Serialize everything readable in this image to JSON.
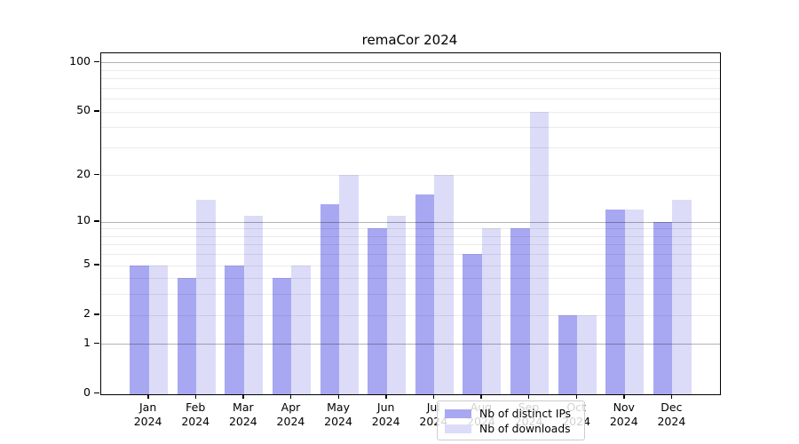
{
  "chart_data": {
    "type": "bar",
    "title": "remaCor 2024",
    "categories": [
      "Jan",
      "Feb",
      "Mar",
      "Apr",
      "May",
      "Jun",
      "Jul",
      "Aug",
      "Sep",
      "Oct",
      "Nov",
      "Dec"
    ],
    "category_year": "2024",
    "series": [
      {
        "name": "Nb of distinct IPs",
        "color": "#a8a8f2",
        "values": [
          5,
          4,
          5,
          4,
          13,
          9,
          15,
          6,
          9,
          2,
          12,
          10
        ]
      },
      {
        "name": "Nb of downloads",
        "color": "#dcdcf8",
        "values": [
          5,
          14,
          11,
          5,
          20,
          11,
          20,
          9,
          50,
          2,
          12,
          14
        ]
      }
    ],
    "xlabel": "",
    "ylabel": "",
    "y_scale": "log1p",
    "ylim": [
      0,
      114
    ],
    "y_ticks": [
      0,
      1,
      2,
      5,
      10,
      20,
      50,
      100
    ],
    "grid": "on",
    "major_grid_values": [
      1,
      10,
      100
    ],
    "minor_grid_values": [
      2,
      3,
      4,
      5,
      6,
      7,
      8,
      9,
      20,
      30,
      40,
      50,
      60,
      70,
      80,
      90
    ],
    "legend_position": "lower center",
    "colors": {
      "spine": "#000000",
      "major_grid": "#b3b3b3",
      "minor_grid": "#ebebeb",
      "background": "#ffffff"
    }
  }
}
